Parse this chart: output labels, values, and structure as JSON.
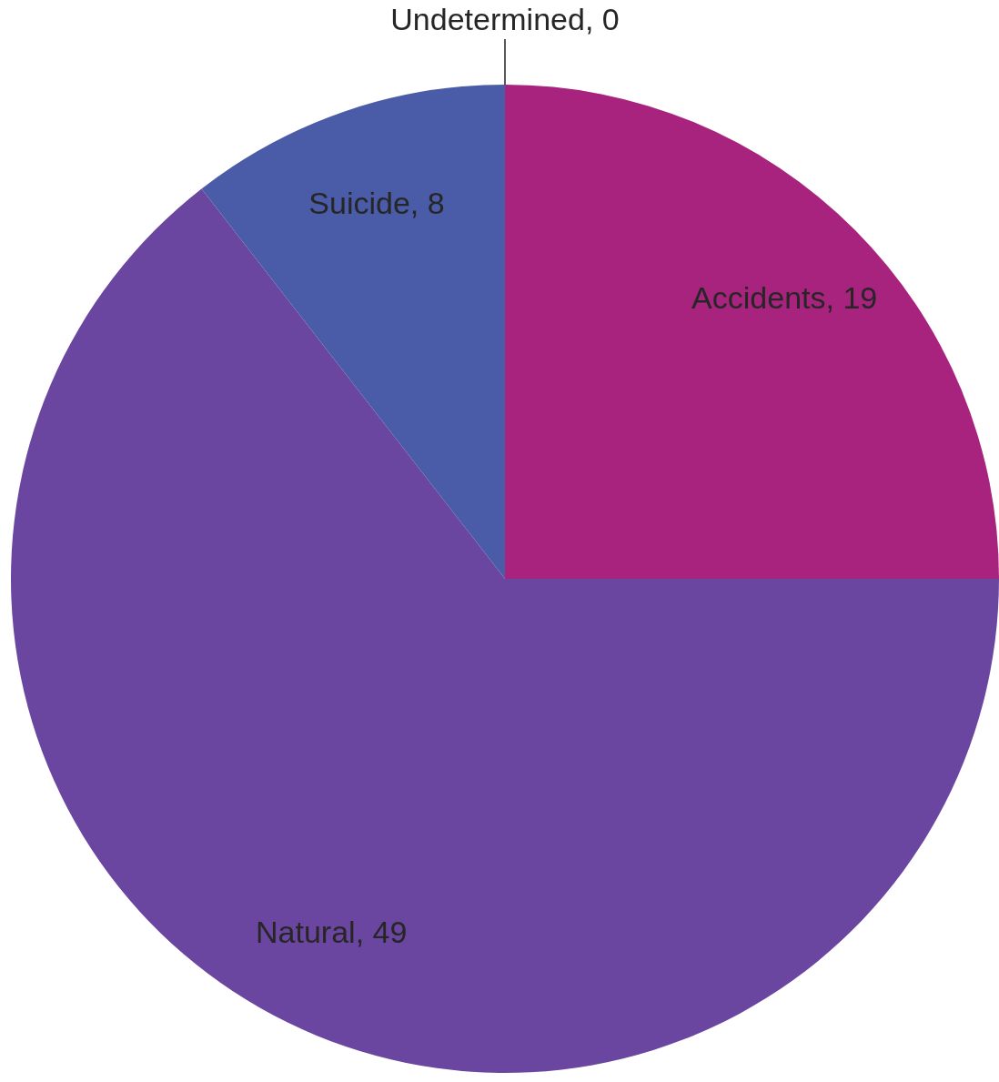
{
  "chart_data": {
    "type": "pie",
    "categories": [
      "Accidents",
      "Natural",
      "Suicide",
      "Undetermined"
    ],
    "values": [
      19,
      49,
      8,
      0
    ],
    "value_labels": [
      ", 19",
      ", 49",
      ", 8",
      ", 0"
    ],
    "colors": [
      "#a8237e",
      "#6b46a0",
      "#4a5ba8",
      "#8b1a6c"
    ]
  }
}
